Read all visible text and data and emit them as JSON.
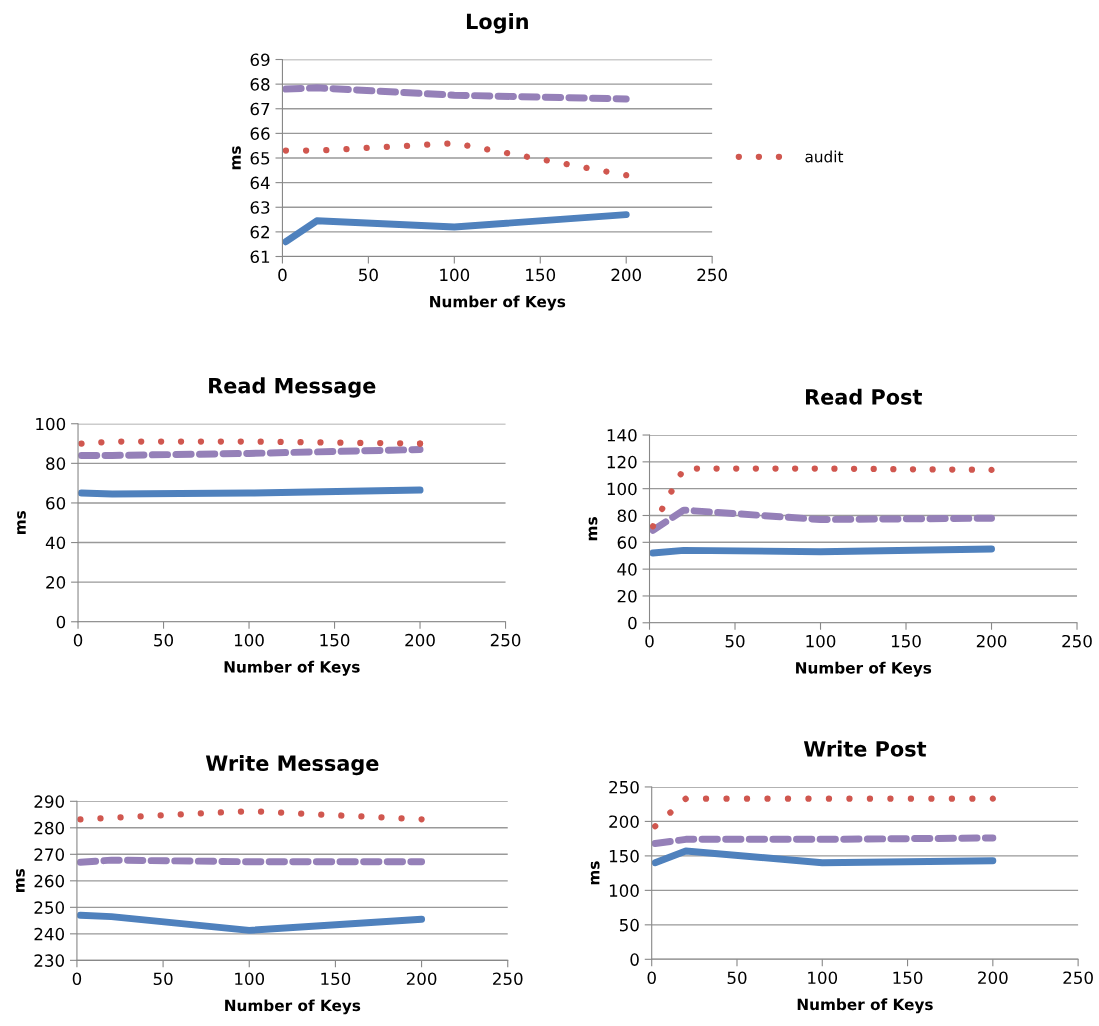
{
  "chart_data": [
    {
      "type": "line",
      "title": "Login",
      "xlabel": "Number of Keys",
      "ylabel": "ms",
      "x": [
        2,
        20,
        100,
        200
      ],
      "xlim": [
        0,
        250
      ],
      "xticks": [
        0,
        50,
        100,
        150,
        200,
        250
      ],
      "ylim": [
        61,
        69
      ],
      "yticks": [
        61,
        62,
        63,
        64,
        65,
        66,
        67,
        68,
        69
      ],
      "grid": "y",
      "legend": "right",
      "series": [
        {
          "color": "#4f81bd",
          "line_style": "solid",
          "values": [
            61.6,
            62.45,
            62.2,
            62.7
          ]
        },
        {
          "color": "#9580b8",
          "line_style": "dashed",
          "values": [
            67.8,
            67.85,
            67.55,
            67.4
          ]
        },
        {
          "name": "audit",
          "color": "#d0574f",
          "line_style": "dotted",
          "values": [
            65.3,
            65.3,
            65.6,
            64.3
          ]
        }
      ]
    },
    {
      "type": "line",
      "title": "Read Message",
      "xlabel": "Number of Keys",
      "ylabel": "ms",
      "x": [
        2,
        20,
        100,
        200
      ],
      "xlim": [
        0,
        250
      ],
      "xticks": [
        0,
        50,
        100,
        150,
        200,
        250
      ],
      "ylim": [
        0,
        100
      ],
      "yticks": [
        0,
        20,
        40,
        60,
        80,
        100
      ],
      "grid": "y",
      "series": [
        {
          "color": "#4f81bd",
          "line_style": "solid",
          "values": [
            65,
            64.5,
            65,
            66.5
          ]
        },
        {
          "color": "#9580b8",
          "line_style": "dashed",
          "values": [
            84,
            84,
            85,
            87
          ]
        },
        {
          "color": "#d0574f",
          "line_style": "dotted",
          "values": [
            90,
            91,
            91,
            90
          ]
        }
      ]
    },
    {
      "type": "line",
      "title": "Read Post",
      "xlabel": "Number of Keys",
      "ylabel": "ms",
      "x": [
        2,
        20,
        100,
        200
      ],
      "xlim": [
        0,
        250
      ],
      "xticks": [
        0,
        50,
        100,
        150,
        200,
        250
      ],
      "ylim": [
        0,
        140
      ],
      "yticks": [
        0,
        20,
        40,
        60,
        80,
        100,
        120,
        140
      ],
      "grid": "y",
      "series": [
        {
          "color": "#4f81bd",
          "line_style": "solid",
          "values": [
            52,
            54,
            53,
            55
          ]
        },
        {
          "color": "#9580b8",
          "line_style": "dashed",
          "values": [
            69,
            84,
            77,
            78
          ]
        },
        {
          "color": "#d0574f",
          "line_style": "dotted",
          "values": [
            72,
            115,
            115,
            114
          ]
        }
      ]
    },
    {
      "type": "line",
      "title": "Write Message",
      "xlabel": "Number of Keys",
      "ylabel": "ms",
      "x": [
        2,
        20,
        100,
        200
      ],
      "xlim": [
        0,
        250
      ],
      "xticks": [
        0,
        50,
        100,
        150,
        200,
        250
      ],
      "ylim": [
        230,
        290
      ],
      "yticks": [
        230,
        240,
        250,
        260,
        270,
        280,
        290
      ],
      "grid": "y",
      "series": [
        {
          "color": "#4f81bd",
          "line_style": "solid",
          "values": [
            247,
            246.5,
            241.3,
            245.5
          ]
        },
        {
          "color": "#9580b8",
          "line_style": "dashed",
          "values": [
            267,
            267.8,
            267.2,
            267.2
          ]
        },
        {
          "color": "#d0574f",
          "line_style": "dotted",
          "values": [
            283.2,
            283.8,
            286.3,
            283.2
          ]
        }
      ]
    },
    {
      "type": "line",
      "title": "Write Post",
      "xlabel": "Number of Keys",
      "ylabel": "ms",
      "x": [
        2,
        20,
        100,
        200
      ],
      "xlim": [
        0,
        250
      ],
      "xticks": [
        0,
        50,
        100,
        150,
        200,
        250
      ],
      "ylim": [
        0,
        250
      ],
      "yticks": [
        0,
        50,
        100,
        150,
        200,
        250
      ],
      "grid": "y",
      "series": [
        {
          "color": "#4f81bd",
          "line_style": "solid",
          "values": [
            140,
            157,
            140,
            143
          ]
        },
        {
          "color": "#9580b8",
          "line_style": "dashed",
          "values": [
            168,
            174,
            174,
            176
          ]
        },
        {
          "color": "#d0574f",
          "line_style": "dotted",
          "values": [
            193,
            233,
            233,
            233
          ]
        }
      ]
    }
  ]
}
